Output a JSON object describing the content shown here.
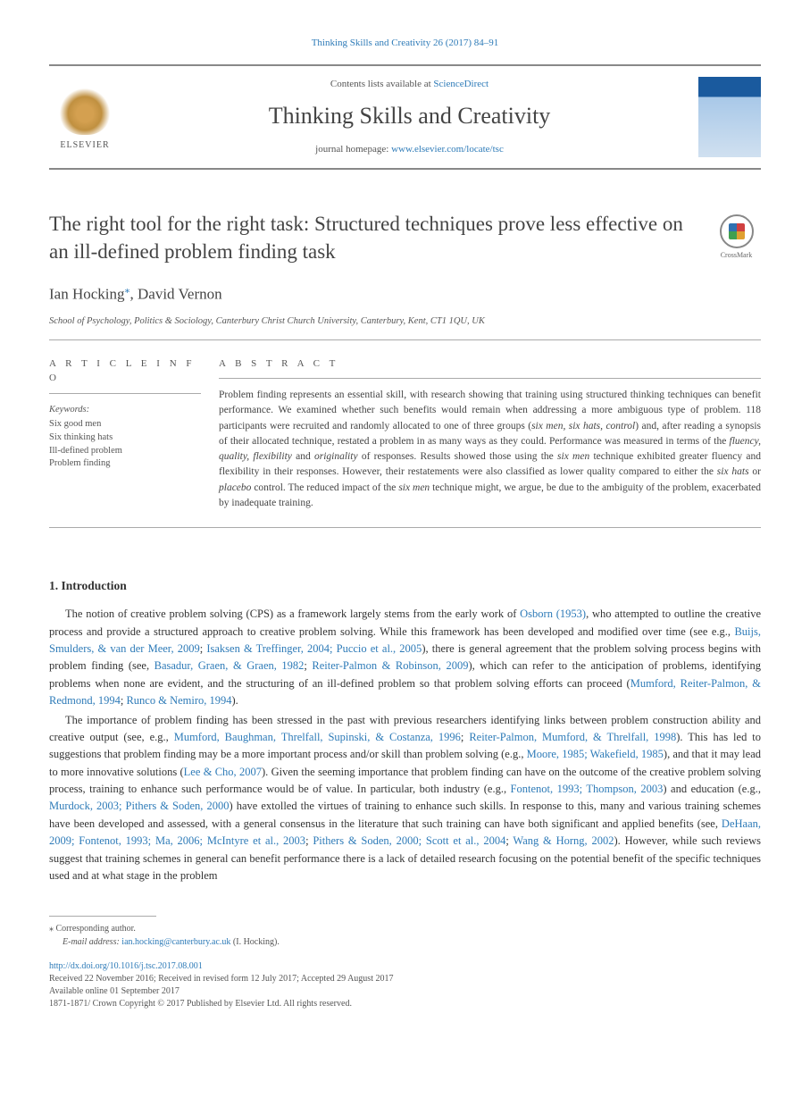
{
  "citation": "Thinking Skills and Creativity 26 (2017) 84–91",
  "banner": {
    "publisher": "ELSEVIER",
    "contents_prefix": "Contents lists available at ",
    "contents_link": "ScienceDirect",
    "journal_name": "Thinking Skills and Creativity",
    "homepage_prefix": "journal homepage: ",
    "homepage_url": "www.elsevier.com/locate/tsc"
  },
  "title": "The right tool for the right task: Structured techniques prove less effective on an ill-defined problem finding task",
  "crossmark": "CrossMark",
  "authors": {
    "a1": "Ian Hocking",
    "corr_marker": "⁎",
    "sep": ", ",
    "a2": "David Vernon"
  },
  "affiliation": "School of Psychology, Politics & Sociology, Canterbury Christ Church University, Canterbury, Kent, CT1 1QU, UK",
  "info_label": "A R T I C L E  I N F O",
  "abstract_label": "A B S T R A C T",
  "keywords": {
    "head": "Keywords:",
    "items": [
      "Six good men",
      "Six thinking hats",
      "Ill-defined problem",
      "Problem finding"
    ]
  },
  "abstract": {
    "p1a": "Problem finding represents an essential skill, with research showing that training using structured thinking techniques can benefit performance. We examined whether such benefits would remain when addressing a more ambiguous type of problem. 118 participants were recruited and randomly allocated to one of three groups (",
    "p1b": "six men, six hats, control",
    "p1c": ") and, after reading a synopsis of their allocated technique, restated a problem in as many ways as they could. Performance was measured in terms of the ",
    "p1d": "fluency, quality, flexibility",
    "p1e": " and ",
    "p1f": "originality",
    "p1g": " of responses. Results showed those using the ",
    "p1h": "six men",
    "p1i": " technique exhibited greater fluency and flexibility in their responses. However, their restatements were also classified as lower quality compared to either the ",
    "p1j": "six hats",
    "p1k": " or ",
    "p1l": "placebo",
    "p1m": " control. The reduced impact of the ",
    "p1n": "six men",
    "p1o": " technique might, we argue, be due to the ambiguity of the problem, exacerbated by inadequate training."
  },
  "intro": {
    "heading": "1. Introduction",
    "p1": {
      "t1": "The notion of creative problem solving (CPS) as a framework largely stems from the early work of ",
      "c1": "Osborn (1953)",
      "t2": ", who attempted to outline the creative process and provide a structured approach to creative problem solving. While this framework has been developed and modified over time (see e.g., ",
      "c2": "Buijs, Smulders, & van der Meer, 2009",
      "t3": "; ",
      "c3": "Isaksen & Treffinger, 2004; Puccio et al., 2005",
      "t4": "), there is general agreement that the problem solving process begins with problem finding (see, ",
      "c4": "Basadur, Graen, & Graen, 1982",
      "t5": "; ",
      "c5": "Reiter-Palmon & Robinson, 2009",
      "t6": "), which can refer to the anticipation of problems, identifying problems when none are evident, and the structuring of an ill-defined problem so that problem solving efforts can proceed (",
      "c6": "Mumford, Reiter-Palmon, & Redmond, 1994",
      "t7": "; ",
      "c7": "Runco & Nemiro, 1994",
      "t8": ")."
    },
    "p2": {
      "t1": "The importance of problem finding has been stressed in the past with previous researchers identifying links between problem construction ability and creative output (see, e.g., ",
      "c1": "Mumford, Baughman, Threlfall, Supinski, & Costanza, 1996",
      "t2": "; ",
      "c2": "Reiter-Palmon, Mumford, & Threlfall, 1998",
      "t3": "). This has led to suggestions that problem finding may be a more important process and/or skill than problem solving (e.g., ",
      "c3": "Moore, 1985; Wakefield, 1985",
      "t4": "), and that it may lead to more innovative solutions (",
      "c4": "Lee & Cho, 2007",
      "t5": "). Given the seeming importance that problem finding can have on the outcome of the creative problem solving process, training to enhance such performance would be of value. In particular, both industry (e.g., ",
      "c5": "Fontenot, 1993; Thompson, 2003",
      "t6": ") and education (e.g., ",
      "c6": "Murdock, 2003; Pithers & Soden, 2000",
      "t7": ") have extolled the virtues of training to enhance such skills. In response to this, many and various training schemes have been developed and assessed, with a general consensus in the literature that such training can have both significant and applied benefits (see, ",
      "c7": "DeHaan, 2009; Fontenot, 1993; Ma, 2006; McIntyre et al., 2003",
      "t8": "; ",
      "c8": "Pithers & Soden, 2000; Scott et al., 2004",
      "t9": "; ",
      "c9": "Wang & Horng, 2002",
      "t10": "). However, while such reviews suggest that training schemes in general can benefit performance there is a lack of detailed research focusing on the potential benefit of the specific techniques used and at what stage in the problem"
    }
  },
  "footer": {
    "corr": "⁎ Corresponding author.",
    "email_label": "E-mail address: ",
    "email": "ian.hocking@canterbury.ac.uk",
    "email_suffix": " (I. Hocking).",
    "doi": "http://dx.doi.org/10.1016/j.tsc.2017.08.001",
    "history": "Received 22 November 2016; Received in revised form 12 July 2017; Accepted 29 August 2017",
    "online": "Available online 01 September 2017",
    "issn": "1871-1871/ Crown Copyright © 2017 Published by Elsevier Ltd. All rights reserved."
  }
}
